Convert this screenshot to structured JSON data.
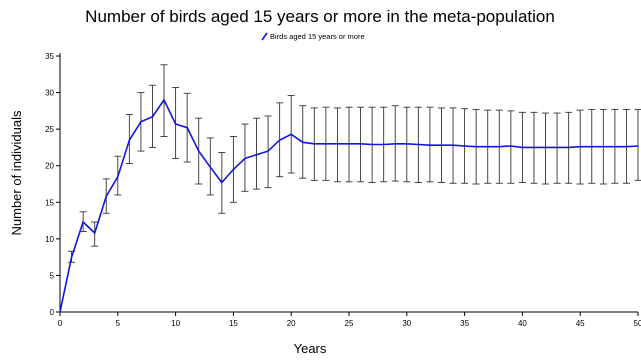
{
  "chart_data": {
    "type": "line",
    "title": "Number of birds aged 15 years or more in the meta-population",
    "xlabel": "Years",
    "ylabel": "Number of individuals",
    "xlim": [
      0,
      50
    ],
    "ylim": [
      0,
      35
    ],
    "x_ticks": [
      0,
      5,
      10,
      15,
      20,
      25,
      30,
      35,
      40,
      45,
      50
    ],
    "y_ticks": [
      0,
      5,
      10,
      15,
      20,
      25,
      30,
      35
    ],
    "grid": false,
    "legend_position": "top-center",
    "series": [
      {
        "name": "Birds aged 15 years or more",
        "color": "#1414e0",
        "x": [
          0,
          1,
          2,
          3,
          4,
          5,
          6,
          7,
          8,
          9,
          10,
          11,
          12,
          13,
          14,
          15,
          16,
          17,
          18,
          19,
          20,
          21,
          22,
          23,
          24,
          25,
          26,
          27,
          28,
          29,
          30,
          31,
          32,
          33,
          34,
          35,
          36,
          37,
          38,
          39,
          40,
          41,
          42,
          43,
          44,
          45,
          46,
          47,
          48,
          49,
          50
        ],
        "y": [
          0,
          7.5,
          12.3,
          10.8,
          15.8,
          18.5,
          23.5,
          26.0,
          26.7,
          29.0,
          25.7,
          25.2,
          22.0,
          19.8,
          17.7,
          19.5,
          21.0,
          21.5,
          22.0,
          23.5,
          24.3,
          23.2,
          23.0,
          23.0,
          23.0,
          23.0,
          23.0,
          22.9,
          22.9,
          23.0,
          23.0,
          22.9,
          22.8,
          22.8,
          22.8,
          22.7,
          22.6,
          22.6,
          22.6,
          22.7,
          22.5,
          22.5,
          22.5,
          22.5,
          22.5,
          22.6,
          22.6,
          22.6,
          22.6,
          22.6,
          22.7
        ],
        "error_low": [
          0,
          6.8,
          11.0,
          9.0,
          13.5,
          16.0,
          20.3,
          22.0,
          22.5,
          24.0,
          21.0,
          20.5,
          17.5,
          16.0,
          13.5,
          15.0,
          16.5,
          16.8,
          17.0,
          18.5,
          19.0,
          18.3,
          18.0,
          18.0,
          17.8,
          17.8,
          17.8,
          17.7,
          17.8,
          17.9,
          17.8,
          17.7,
          17.8,
          17.7,
          17.6,
          17.6,
          17.5,
          17.6,
          17.6,
          17.6,
          17.7,
          17.6,
          17.5,
          17.6,
          17.6,
          17.5,
          17.6,
          17.5,
          17.6,
          17.6,
          18.0
        ],
        "error_high": [
          0,
          8.3,
          13.7,
          12.3,
          18.2,
          21.3,
          27.0,
          30.0,
          31.0,
          33.8,
          30.7,
          29.9,
          26.5,
          23.8,
          21.8,
          24.0,
          25.7,
          26.5,
          26.8,
          28.6,
          29.6,
          28.2,
          27.9,
          28.0,
          27.9,
          28.0,
          28.0,
          28.0,
          28.0,
          28.2,
          28.0,
          28.0,
          28.0,
          27.9,
          27.9,
          27.8,
          27.7,
          27.6,
          27.6,
          27.5,
          27.3,
          27.3,
          27.2,
          27.2,
          27.3,
          27.6,
          27.7,
          27.7,
          27.7,
          27.7,
          27.7
        ]
      }
    ]
  }
}
